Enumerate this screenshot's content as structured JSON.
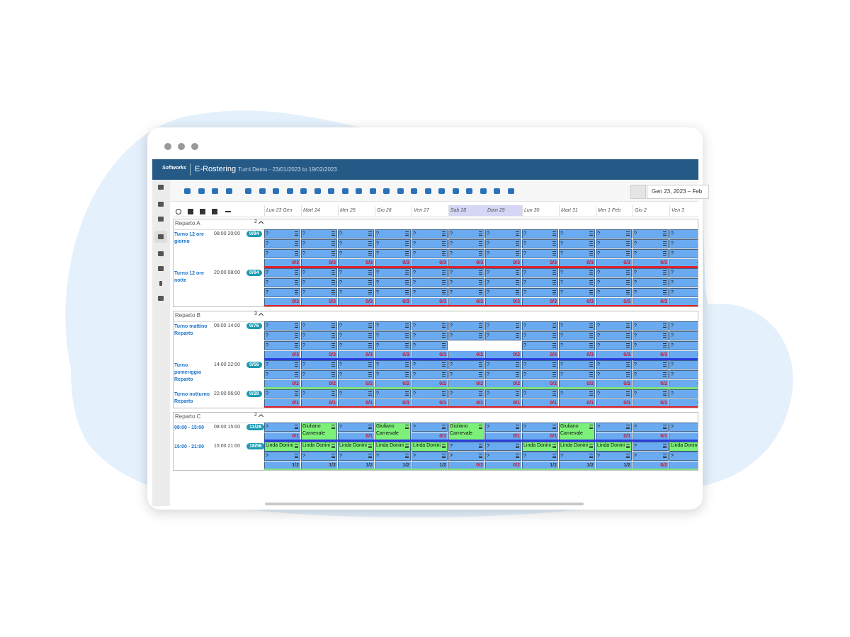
{
  "header": {
    "logo": "Softworks",
    "app": "E-Rostering",
    "subtitle": "Turni Demo - 23/01/2023 to 19/02/2023"
  },
  "date_range": "Gen 23, 2023 – Feb",
  "days": [
    "Lun 23 Gen",
    "Mart 24",
    "Mer 25",
    "Gio 26",
    "Ven 27",
    "Sab 28",
    "Dom 29",
    "Lun 30",
    "Mart 31",
    "Mer 1 Feb",
    "Gio 2",
    "Ven 3"
  ],
  "sections": [
    {
      "name": "Reparto A",
      "count": "2",
      "shifts": [
        {
          "name": "Turno 12 ore giorno",
          "time": "08:00 20:00",
          "badge": "0/84",
          "line_color": "#e0202a",
          "rows": [
            [
              "?",
              "?",
              "?",
              "?",
              "?",
              "?",
              "?",
              "?",
              "?",
              "?",
              "?",
              "?"
            ],
            [
              "?",
              "?",
              "?",
              "?",
              "?",
              "?",
              "?",
              "?",
              "?",
              "?",
              "?",
              "?"
            ],
            [
              "?",
              "?",
              "?",
              "?",
              "?",
              "?",
              "?",
              "?",
              "?",
              "?",
              "?",
              "?"
            ]
          ],
          "footer": [
            "0/3",
            "0/3",
            "0/3",
            "0/3",
            "0/3",
            "0/3",
            "0/3",
            "0/3",
            "0/3",
            "0/3",
            "0/3",
            "0/3"
          ]
        },
        {
          "name": "Turno 12 ore notte",
          "time": "20:00 08:00",
          "badge": "0/84",
          "line_color": "#e0202a",
          "rows": [
            [
              "?",
              "?",
              "?",
              "?",
              "?",
              "?",
              "?",
              "?",
              "?",
              "?",
              "?",
              "?"
            ],
            [
              "?",
              "?",
              "?",
              "?",
              "?",
              "?",
              "?",
              "?",
              "?",
              "?",
              "?",
              "?"
            ],
            [
              "?",
              "?",
              "?",
              "?",
              "?",
              "?",
              "?",
              "?",
              "?",
              "?",
              "?",
              "?"
            ]
          ],
          "footer": [
            "0/3",
            "0/3",
            "0/3",
            "0/3",
            "0/3",
            "0/3",
            "0/3",
            "0/3",
            "0/3",
            "0/3",
            "0/3",
            "0/3"
          ]
        }
      ]
    },
    {
      "name": "Reparto B",
      "count": "3",
      "shifts": [
        {
          "name": "Turno mattino Reparto",
          "time": "06:00 14:00",
          "badge": "0/76",
          "line_color": "#2a3ce0",
          "rows": [
            [
              "?",
              "?",
              "?",
              "?",
              "?",
              "?",
              "?",
              "?",
              "?",
              "?",
              "?",
              "?"
            ],
            [
              "?",
              "?",
              "?",
              "?",
              "?",
              "?",
              "?",
              "?",
              "?",
              "?",
              "?",
              "?"
            ],
            [
              "?",
              "?",
              "?",
              "?",
              "?",
              null,
              null,
              "?",
              "?",
              "?",
              "?",
              "?"
            ]
          ],
          "footer": [
            "0/3",
            "0/3",
            "0/3",
            "0/3",
            "0/3",
            "0/2",
            "0/2",
            "0/3",
            "0/3",
            "0/3",
            "0/3",
            "0/3"
          ]
        },
        {
          "name": "Turno pomeriggio Reparto",
          "time": "14:00 22:00",
          "badge": "0/56",
          "line_color": "#7ee27a",
          "rows": [
            [
              "?",
              "?",
              "?",
              "?",
              "?",
              "?",
              "?",
              "?",
              "?",
              "?",
              "?",
              "?"
            ],
            [
              "?",
              "?",
              "?",
              "?",
              "?",
              "?",
              "?",
              "?",
              "?",
              "?",
              "?",
              "?"
            ]
          ],
          "footer": [
            "0/2",
            "0/2",
            "0/2",
            "0/2",
            "0/2",
            "0/2",
            "0/2",
            "0/2",
            "0/2",
            "0/2",
            "0/2",
            "0/2"
          ]
        },
        {
          "name": "Turno notturno Reparto",
          "time": "22:00 06:00",
          "badge": "0/28",
          "line_color": "#e0202a",
          "rows": [
            [
              "?",
              "?",
              "?",
              "?",
              "?",
              "?",
              "?",
              "?",
              "?",
              "?",
              "?",
              "?"
            ]
          ],
          "footer": [
            "0/1",
            "0/1",
            "0/1",
            "0/1",
            "0/1",
            "0/1",
            "0/1",
            "0/1",
            "0/1",
            "0/1",
            "0/1",
            "0/1"
          ]
        }
      ]
    },
    {
      "name": "Reparto C",
      "count": "2",
      "shifts": [
        {
          "name": "08:00 - 15:00",
          "time": "08:00 15:00",
          "badge": "11/28",
          "line_color": "#2a3ce0",
          "rows": [
            [
              "?",
              "Giuliano Carnevale",
              "?",
              "Giuliano Carnevale",
              "?",
              "Giuliano Carnevale",
              "?",
              "?",
              "Giuliano Carnevale",
              "?",
              "?",
              "?"
            ]
          ],
          "footer": [
            "0/1",
            null,
            "0/1",
            null,
            "0/1",
            null,
            "0/1",
            "0/1",
            null,
            "0/1",
            "0/1",
            "0/1"
          ]
        },
        {
          "name": "15:00 - 21:00",
          "time": "15:00 21:00",
          "badge": "18/56",
          "line_color": "#7ee27a",
          "rows": [
            [
              "Linda Donini",
              "Linda Donini",
              "Linda Donini",
              "Linda Donini",
              "Linda Donini",
              "?",
              "?",
              "Linda Donini",
              "Linda Donini",
              "Linda Donini",
              "?",
              "Linda Donini"
            ],
            [
              "?",
              "?",
              "?",
              "?",
              "?",
              "?",
              "?",
              "?",
              "?",
              "?",
              "?",
              "?"
            ]
          ],
          "footer": [
            "1/2",
            "1/2",
            "1/2",
            "1/2",
            "1/2",
            "0/2",
            "0/2",
            "1/2",
            "1/2",
            "1/2",
            "0/2",
            "1/2"
          ]
        }
      ]
    }
  ]
}
